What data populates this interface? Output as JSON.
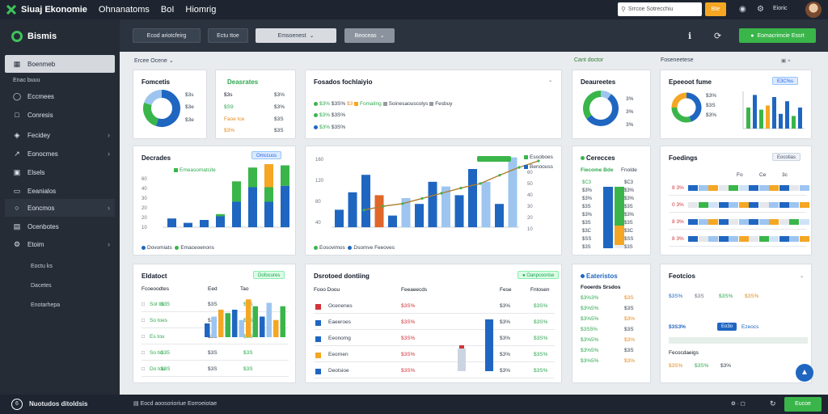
{
  "app": {
    "title": "Siuaj Ekonomie",
    "menus": [
      "Ohnanatoms",
      "BoI",
      "Hiomrig"
    ]
  },
  "topbar": {
    "search_placeholder": "Srrcoe Sotrecchiu",
    "search_button": "Bte",
    "user": "Eioric"
  },
  "sidebar": {
    "brand": "Bismis",
    "items": [
      {
        "label": "Boenmeb",
        "icon": "grid-icon",
        "state": "active"
      },
      {
        "label": "Enac buuu",
        "icon": "",
        "state": "section"
      },
      {
        "label": "Eccmees",
        "icon": "shield-icon"
      },
      {
        "label": "Conresis",
        "icon": "message-icon"
      },
      {
        "label": "Fecidey",
        "icon": "tag-icon",
        "chevron": true
      },
      {
        "label": "Eonocmes",
        "icon": "chart-icon",
        "chevron": true
      },
      {
        "label": "Elsels",
        "icon": "box-icon"
      },
      {
        "label": "Eeanialos",
        "icon": "folder-icon"
      },
      {
        "label": "Eoncmos",
        "icon": "circle-icon",
        "chevron": true,
        "state": "highlight"
      },
      {
        "label": "Ocenbotes",
        "icon": "doc-icon"
      },
      {
        "label": "Etoim",
        "icon": "gear-icon",
        "chevron": true
      },
      {
        "label": "Eoctu ks",
        "icon": "",
        "state": "section"
      },
      {
        "label": "Dacetes",
        "icon": ""
      },
      {
        "label": "Enotarhepa",
        "icon": ""
      }
    ]
  },
  "toolbar": {
    "filter1": "Ecod ariotcfeirg",
    "filter2": "Ectu ttoe",
    "dropdown": "Emsoenest",
    "button": "Beoceas",
    "primary": "Eomacrimcie Essrt"
  },
  "sections": {
    "left": "Ercee Ocene",
    "mid": "Cant doctor",
    "right": "Foseneetese"
  },
  "cards": {
    "c1": {
      "title": "Fomcetis",
      "items": [
        {
          "label": "$3s",
          "value": 55
        },
        {
          "label": "$3e",
          "value": 25
        },
        {
          "label": "$3e",
          "value": 20
        }
      ]
    },
    "c2": {
      "title": "Deasrates",
      "rows": [
        [
          "$3s",
          "$3%"
        ],
        [
          "$S9",
          "$3%"
        ],
        [
          "Faoe Ice",
          "$3S"
        ],
        [
          "$3%",
          "$3S"
        ]
      ]
    },
    "c3": {
      "title": "Fosados fochlaiyio",
      "legend": [
        "Fomaling",
        "Soinesaouscolys",
        "Fesbuy"
      ],
      "rows": [
        [
          "$3%",
          "$3S%",
          "$3"
        ],
        [
          "$3%",
          "$3S%"
        ],
        [
          "$3%",
          "$3S%"
        ]
      ]
    },
    "c4": {
      "title": "Deaureetes",
      "values": [
        {
          "label": "3%",
          "value": 10
        },
        {
          "label": "3%",
          "value": 55
        },
        {
          "label": "3%",
          "value": 35
        }
      ]
    },
    "c5": {
      "title": "Epeeoot fume",
      "tag": "E3C%s",
      "labels": [
        "$3%",
        "$3S",
        "$3%"
      ]
    },
    "c6": {
      "title": "Decrades",
      "tag": "Omccuss",
      "legend": [
        "Emeasomatcite"
      ],
      "foot": [
        "Dovomiats",
        "Emaceoenons"
      ],
      "yticks": [
        "60",
        "40",
        "30",
        "20",
        "20",
        "10"
      ],
      "bars": [
        [
          12,
          0,
          0
        ],
        [
          6,
          0,
          0
        ],
        [
          10,
          0,
          0
        ],
        [
          15,
          3,
          0
        ],
        [
          35,
          28,
          0
        ],
        [
          55,
          27,
          0
        ],
        [
          35,
          20,
          45
        ],
        [
          57,
          28,
          0
        ]
      ],
      "bar_top_labels": [
        "",
        "",
        "",
        "",
        "",
        "",
        "",
        ""
      ]
    },
    "c7": {
      "title": "",
      "legend": [
        "Esooboes",
        "Benoouss"
      ],
      "foot": [
        "Eosovimos",
        "Dsomve Feeoves"
      ],
      "yticks": [
        "160",
        "120",
        "80",
        "40"
      ],
      "yticks_right": [
        "60",
        "50",
        "40",
        "30",
        "20",
        "10"
      ],
      "bars": [
        30,
        60,
        90,
        55,
        20,
        50,
        40,
        78,
        70,
        55,
        100,
        78,
        40,
        120
      ],
      "bar_colors": [
        "b",
        "b",
        "b",
        "o",
        "b",
        "l",
        "b",
        "b",
        "l",
        "b",
        "b",
        "l",
        "b",
        "l"
      ],
      "line": [
        14,
        20,
        24,
        32,
        40,
        48,
        55,
        68,
        80,
        90
      ]
    },
    "c8": {
      "title": "Cerecces",
      "headers": [
        "Fiecome Bde",
        "Fnolde"
      ],
      "yticks": [
        "$C3",
        "$3%",
        "$3%",
        "$3S",
        "$3%",
        "$3S",
        "$3C",
        "$SS",
        "$3S"
      ],
      "bars": [
        {
          "value": 60,
          "color": "green"
        },
        {
          "value": 40,
          "color": "orange"
        }
      ]
    },
    "c9": {
      "title": "Foedings",
      "tag": "Eocotias",
      "headers": [
        "Fo",
        "Ce",
        "3c"
      ],
      "rows": [
        "8 3%",
        "0 3%",
        "8 3%",
        "8 3%"
      ]
    },
    "c10": {
      "title": "Eldatoct",
      "tag": "Dofocures",
      "headers": [
        "Fcoeoodtes",
        "Eed",
        "Tao"
      ],
      "rows": [
        [
          "Sol tiu",
          "$35",
          "$3S",
          "$3S"
        ],
        [
          "So toes",
          "",
          "$3S",
          "$3S"
        ],
        [
          "Es tou",
          "",
          "$3S",
          "$3S"
        ],
        [
          "So tiu",
          "$35",
          "$3S",
          "$3S"
        ],
        [
          "Do tou",
          "$3S",
          "$3S",
          "$3S"
        ]
      ],
      "bars": [
        20,
        30,
        40,
        35,
        40,
        25,
        55,
        45,
        30,
        50,
        25,
        45
      ]
    },
    "c11": {
      "title": "Dsrotoed dontiing",
      "tag": "Oanpcoorise",
      "headers": [
        "Fooo Doou",
        "Feeaeecds",
        "Fese",
        "Fntosen"
      ],
      "rows": [
        {
          "label": "Ocenenes",
          "v1": "$3S%",
          "v2": "$3%",
          "v3": "$3S%",
          "color": "#d0343a"
        },
        {
          "label": "Eaeeroes",
          "v1": "$3S%",
          "v2": "$3%",
          "v3": "$3S%",
          "color": "#1f66c1"
        },
        {
          "label": "Eeonomg",
          "v1": "$3S%",
          "v2": "$3%",
          "v3": "$3S%",
          "color": "#1f66c1"
        },
        {
          "label": "Eeornen",
          "v1": "$3S%",
          "v2": "$3%",
          "v3": "$3S%",
          "color": "#f5a623"
        },
        {
          "label": "Deotsioe",
          "v1": "$3S%",
          "v2": "$3%",
          "v3": "$3S%",
          "color": "#1f66c1"
        }
      ]
    },
    "c12": {
      "title": "Eateristos",
      "headers": [
        "Fooerds Srsdos",
        "Fsorooso"
      ],
      "rows": [
        [
          "$3%3%",
          "$3S"
        ],
        [
          "$3%5%",
          "$3S"
        ],
        [
          "$3%5%",
          "$3%"
        ],
        [
          "$3S5%",
          "$3S"
        ],
        [
          "$3%5%",
          "$3%"
        ],
        [
          "$3%5%",
          "$3S"
        ],
        [
          "$3%5%",
          "$3%"
        ]
      ]
    },
    "c13": {
      "title": "Feotcios",
      "row1": [
        "$3S%",
        "$3S",
        "$3S%",
        "$3S%"
      ],
      "label2": "$3S3%",
      "btn": "Eo3o",
      "link": "Ezeocs",
      "sub": "Fecocdaeigs",
      "row3": [
        "$3S%",
        "$3S%",
        "$3%"
      ]
    }
  },
  "footer": {
    "label": "Nuotudos ditoldsis",
    "status": "Eocd aoosorioriue Eorroeiotae",
    "button": "Eucoe"
  },
  "colors": {
    "green": "#3ab54a",
    "blue": "#1f66c1",
    "orange": "#f5a623",
    "red": "#d0343a"
  }
}
